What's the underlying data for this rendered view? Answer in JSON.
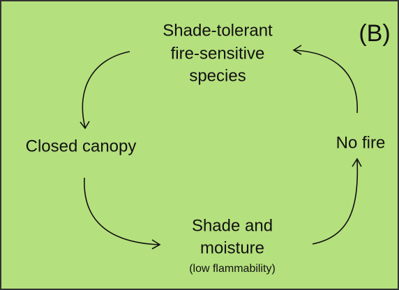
{
  "panel_label": "(B)",
  "nodes": [
    {
      "lines": [
        "Shade-tolerant",
        "fire-sensitive",
        "species"
      ]
    },
    {
      "lines": [
        "Closed canopy"
      ]
    },
    {
      "lines": [
        "Shade and",
        "moisture"
      ],
      "note": "(low flammability)"
    },
    {
      "lines": [
        "No fire"
      ]
    }
  ]
}
